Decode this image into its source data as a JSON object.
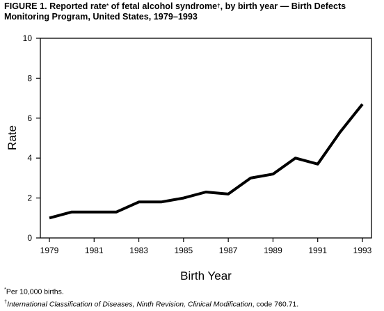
{
  "figure": {
    "label": "FIGURE 1.",
    "title_part1": "Reported rate",
    "title_mark1": "*",
    "title_part2": " of fetal alcohol syndrome",
    "title_mark2": "†",
    "title_part3": ", by birth year — Birth Defects Monitoring Program, United States, 1979–1993"
  },
  "footnotes": {
    "f1_mark": "*",
    "f1_text": "Per 10,000 births.",
    "f2_mark": "†",
    "f2_italic": "International Classification of Diseases, Ninth Revision, Clinical Modification",
    "f2_rest": ", code 760.71."
  },
  "chart_data": {
    "type": "line",
    "title": "FIGURE 1. Reported rate* of fetal alcohol syndrome†, by birth year — Birth Defects Monitoring Program, United States, 1979–1993",
    "xlabel": "Birth Year",
    "ylabel": "Rate",
    "xlim": [
      1979,
      1993
    ],
    "ylim": [
      0,
      10
    ],
    "x_ticks": [
      1979,
      1981,
      1983,
      1985,
      1987,
      1989,
      1991,
      1993
    ],
    "y_ticks": [
      0,
      2,
      4,
      6,
      8,
      10
    ],
    "grid": false,
    "series": [
      {
        "x": [
          1979,
          1980,
          1981,
          1982,
          1983,
          1984,
          1985,
          1986,
          1987,
          1988,
          1989,
          1990,
          1991,
          1992,
          1993
        ],
        "values": [
          1.0,
          1.3,
          1.3,
          1.3,
          1.8,
          1.8,
          2.0,
          2.3,
          2.2,
          3.0,
          3.2,
          4.0,
          3.7,
          5.3,
          6.7
        ],
        "color": "#000000"
      }
    ]
  }
}
